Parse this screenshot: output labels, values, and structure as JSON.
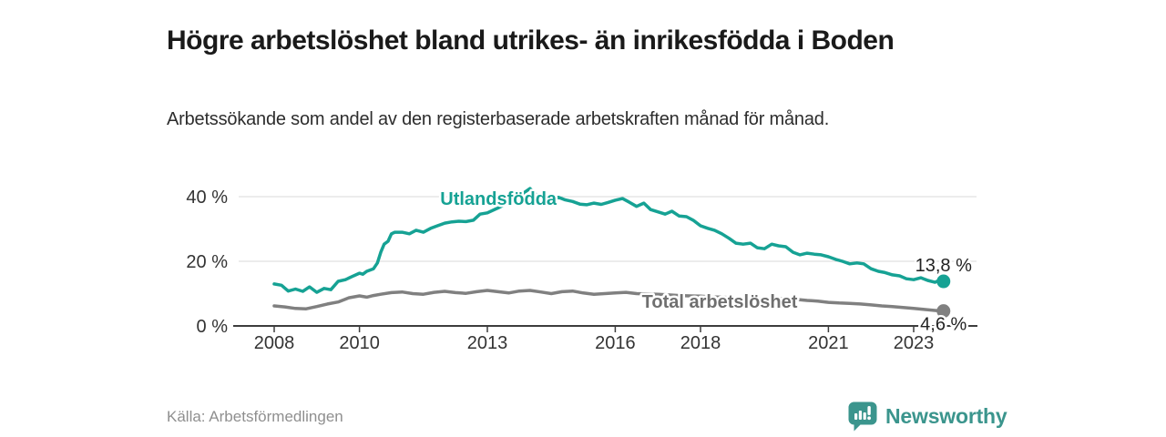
{
  "header": {
    "title": "Högre arbetslöshet bland utrikes- än inrikesfödda i Boden",
    "subtitle": "Arbetssökande som andel av den registerbaserade arbetskraften månad för månad."
  },
  "footer": {
    "source": "Källa: Arbetsförmedlingen",
    "branding_name": "Newsworthy"
  },
  "colors": {
    "background": "#ffffff",
    "title_text": "#1a1a1a",
    "subtitle_text": "#2d2d2d",
    "axis_text": "#333333",
    "axis_line": "#3d3d3d",
    "gridline": "#d8d8d8",
    "source_text": "#8f8f8f",
    "brand_teal": "#3b958d",
    "series_teal": "#16a294",
    "series_gray": "#808080",
    "series_gray_label": "#6f6f6f",
    "value_label": "#222222"
  },
  "chart_data": {
    "type": "line",
    "title": "Högre arbetslöshet bland utrikes- än inrikesfödda i Boden",
    "subtitle": "Arbetssökande som andel av den registerbaserade arbetskraften månad för månad.",
    "xlabel": "",
    "ylabel": "",
    "xlim": [
      2007.2,
      2024.5
    ],
    "ylim": [
      0,
      44.5
    ],
    "grid": "horizontal",
    "legend_position": "inline-labels",
    "x_ticks": {
      "values": [
        2008,
        2010,
        2013,
        2016,
        2018,
        2021,
        2023
      ],
      "labels": [
        "2008",
        "2010",
        "2013",
        "2016",
        "2018",
        "2021",
        "2023"
      ]
    },
    "y_ticks": {
      "values": [
        0,
        20,
        40
      ],
      "labels": [
        "0 %",
        "20 %",
        "40 %"
      ]
    },
    "series": [
      {
        "name": "Utlandsfödda",
        "color": "#16a294",
        "label_color": "#16a294",
        "label_anchor": {
          "year": 2013.26,
          "value": 37.5
        },
        "end_label": "13,8 %",
        "end_value": 13.8,
        "end_label_dy": -11,
        "points": [
          [
            2008.0,
            13.0
          ],
          [
            2008.17,
            12.6
          ],
          [
            2008.33,
            10.8
          ],
          [
            2008.5,
            11.4
          ],
          [
            2008.67,
            10.7
          ],
          [
            2008.83,
            12.1
          ],
          [
            2009.0,
            10.4
          ],
          [
            2009.17,
            11.6
          ],
          [
            2009.33,
            11.2
          ],
          [
            2009.5,
            13.8
          ],
          [
            2009.67,
            14.3
          ],
          [
            2009.83,
            15.3
          ],
          [
            2010.0,
            16.3
          ],
          [
            2010.08,
            16.0
          ],
          [
            2010.17,
            16.9
          ],
          [
            2010.25,
            17.3
          ],
          [
            2010.33,
            17.7
          ],
          [
            2010.42,
            19.5
          ],
          [
            2010.5,
            22.8
          ],
          [
            2010.58,
            25.3
          ],
          [
            2010.67,
            26.2
          ],
          [
            2010.75,
            28.5
          ],
          [
            2010.83,
            29.0
          ],
          [
            2011.0,
            29.0
          ],
          [
            2011.17,
            28.5
          ],
          [
            2011.33,
            29.6
          ],
          [
            2011.5,
            29.0
          ],
          [
            2011.67,
            30.2
          ],
          [
            2011.83,
            31.0
          ],
          [
            2012.0,
            31.8
          ],
          [
            2012.17,
            32.2
          ],
          [
            2012.33,
            32.4
          ],
          [
            2012.5,
            32.3
          ],
          [
            2012.67,
            32.7
          ],
          [
            2012.83,
            34.6
          ],
          [
            2013.0,
            35.0
          ],
          [
            2013.25,
            36.5
          ],
          [
            2013.5,
            38.2
          ],
          [
            2013.75,
            40.2
          ],
          [
            2014.0,
            42.5
          ],
          [
            2014.17,
            40.3
          ],
          [
            2014.33,
            39.8
          ],
          [
            2014.5,
            39.3
          ],
          [
            2014.67,
            39.8
          ],
          [
            2014.83,
            39.0
          ],
          [
            2015.0,
            38.5
          ],
          [
            2015.17,
            37.7
          ],
          [
            2015.33,
            37.5
          ],
          [
            2015.5,
            38.0
          ],
          [
            2015.67,
            37.6
          ],
          [
            2015.83,
            38.2
          ],
          [
            2016.0,
            38.9
          ],
          [
            2016.17,
            39.4
          ],
          [
            2016.33,
            38.3
          ],
          [
            2016.5,
            37.0
          ],
          [
            2016.67,
            38.0
          ],
          [
            2016.83,
            36.0
          ],
          [
            2017.0,
            35.3
          ],
          [
            2017.17,
            34.6
          ],
          [
            2017.33,
            35.5
          ],
          [
            2017.5,
            34.0
          ],
          [
            2017.67,
            33.8
          ],
          [
            2017.83,
            32.7
          ],
          [
            2018.0,
            31.0
          ],
          [
            2018.17,
            30.2
          ],
          [
            2018.33,
            29.6
          ],
          [
            2018.5,
            28.5
          ],
          [
            2018.67,
            27.1
          ],
          [
            2018.83,
            25.6
          ],
          [
            2019.0,
            25.3
          ],
          [
            2019.17,
            25.6
          ],
          [
            2019.33,
            24.2
          ],
          [
            2019.5,
            23.9
          ],
          [
            2019.67,
            25.3
          ],
          [
            2019.83,
            24.8
          ],
          [
            2020.0,
            24.5
          ],
          [
            2020.17,
            22.8
          ],
          [
            2020.33,
            22.0
          ],
          [
            2020.5,
            22.5
          ],
          [
            2020.67,
            22.2
          ],
          [
            2020.83,
            22.0
          ],
          [
            2021.0,
            21.4
          ],
          [
            2021.17,
            20.6
          ],
          [
            2021.33,
            20.0
          ],
          [
            2021.5,
            19.2
          ],
          [
            2021.67,
            19.5
          ],
          [
            2021.83,
            19.2
          ],
          [
            2022.0,
            17.7
          ],
          [
            2022.17,
            16.9
          ],
          [
            2022.33,
            16.5
          ],
          [
            2022.5,
            15.8
          ],
          [
            2022.67,
            15.5
          ],
          [
            2022.83,
            14.6
          ],
          [
            2023.0,
            14.3
          ],
          [
            2023.17,
            14.9
          ],
          [
            2023.33,
            14.1
          ],
          [
            2023.5,
            13.5
          ],
          [
            2023.58,
            14.0
          ],
          [
            2023.7,
            13.8
          ]
        ]
      },
      {
        "name": "Total arbetslöshet",
        "color": "#808080",
        "label_color": "#6f6f6f",
        "label_anchor": {
          "year": 2018.45,
          "value": 5.6
        },
        "end_label": "4,6 %",
        "end_value": 4.6,
        "end_label_dy": 21,
        "points": [
          [
            2008.0,
            6.2
          ],
          [
            2008.25,
            5.9
          ],
          [
            2008.5,
            5.4
          ],
          [
            2008.75,
            5.3
          ],
          [
            2009.0,
            6.0
          ],
          [
            2009.25,
            6.8
          ],
          [
            2009.5,
            7.4
          ],
          [
            2009.75,
            8.7
          ],
          [
            2010.0,
            9.3
          ],
          [
            2010.17,
            8.9
          ],
          [
            2010.33,
            9.4
          ],
          [
            2010.5,
            9.8
          ],
          [
            2010.75,
            10.3
          ],
          [
            2011.0,
            10.5
          ],
          [
            2011.25,
            10.0
          ],
          [
            2011.5,
            9.8
          ],
          [
            2011.75,
            10.4
          ],
          [
            2012.0,
            10.7
          ],
          [
            2012.25,
            10.3
          ],
          [
            2012.5,
            10.1
          ],
          [
            2012.75,
            10.6
          ],
          [
            2013.0,
            11.0
          ],
          [
            2013.25,
            10.6
          ],
          [
            2013.5,
            10.2
          ],
          [
            2013.75,
            10.8
          ],
          [
            2014.0,
            11.0
          ],
          [
            2014.25,
            10.5
          ],
          [
            2014.5,
            10.0
          ],
          [
            2014.75,
            10.6
          ],
          [
            2015.0,
            10.8
          ],
          [
            2015.25,
            10.2
          ],
          [
            2015.5,
            9.8
          ],
          [
            2015.75,
            10.0
          ],
          [
            2016.0,
            10.2
          ],
          [
            2016.25,
            10.4
          ],
          [
            2016.5,
            10.0
          ],
          [
            2016.75,
            9.9
          ],
          [
            2017.0,
            9.8
          ],
          [
            2017.25,
            9.6
          ],
          [
            2017.5,
            9.4
          ],
          [
            2017.75,
            9.3
          ],
          [
            2018.0,
            9.2
          ],
          [
            2018.25,
            9.0
          ],
          [
            2018.5,
            8.9
          ],
          [
            2018.75,
            8.7
          ],
          [
            2019.0,
            8.6
          ],
          [
            2019.25,
            8.4
          ],
          [
            2019.5,
            8.3
          ],
          [
            2019.75,
            8.4
          ],
          [
            2020.0,
            8.5
          ],
          [
            2020.25,
            8.2
          ],
          [
            2020.5,
            7.9
          ],
          [
            2020.75,
            7.7
          ],
          [
            2021.0,
            7.3
          ],
          [
            2021.25,
            7.1
          ],
          [
            2021.5,
            7.0
          ],
          [
            2021.75,
            6.8
          ],
          [
            2022.0,
            6.5
          ],
          [
            2022.25,
            6.2
          ],
          [
            2022.5,
            6.0
          ],
          [
            2022.75,
            5.7
          ],
          [
            2023.0,
            5.4
          ],
          [
            2023.25,
            5.1
          ],
          [
            2023.5,
            4.8
          ],
          [
            2023.7,
            4.6
          ]
        ]
      }
    ]
  }
}
